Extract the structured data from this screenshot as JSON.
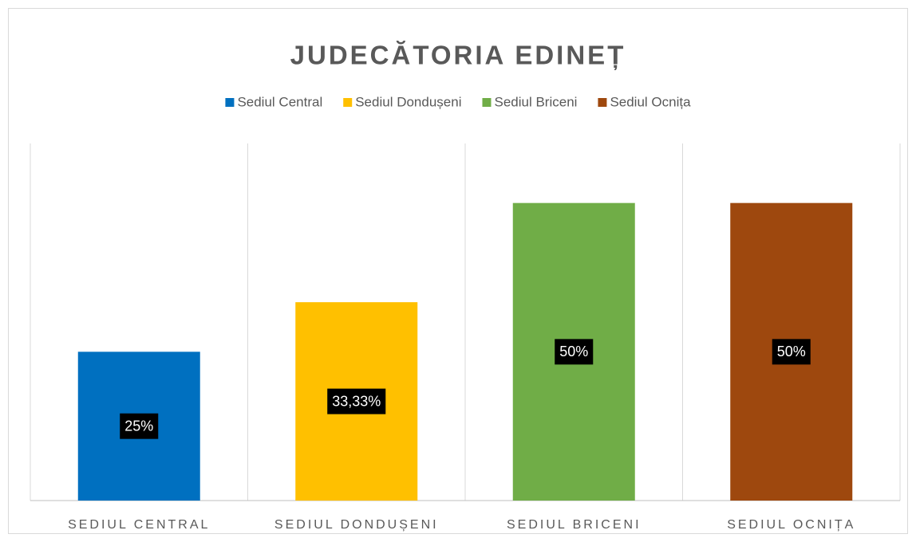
{
  "chart_data": {
    "type": "bar",
    "title": "JUDECĂTORIA EDINEȚ",
    "legend": [
      "Sediul Central",
      "Sediul Dondușeni",
      "Sediul Briceni",
      "Sediul Ocnița"
    ],
    "categories": [
      "SEDIUL CENTRAL",
      "SEDIUL DONDUȘENI",
      "SEDIUL BRICENI",
      "SEDIUL OCNIȚA"
    ],
    "values": [
      25,
      33.33,
      50,
      50
    ],
    "value_labels": [
      "25%",
      "33,33%",
      "50%",
      "50%"
    ],
    "colors": [
      "#0070c0",
      "#ffc000",
      "#70ad47",
      "#9e480e"
    ],
    "ylim": [
      0,
      60
    ]
  }
}
